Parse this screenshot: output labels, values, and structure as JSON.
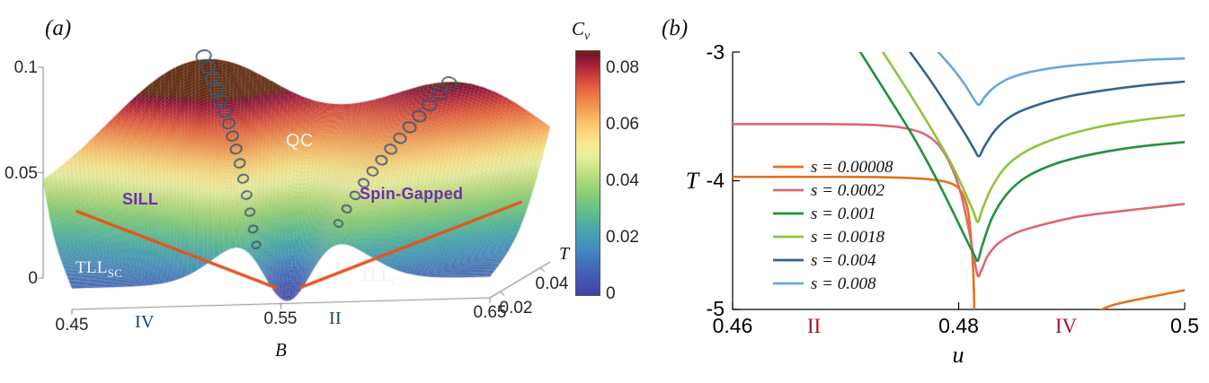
{
  "chart_data": [
    {
      "type": "surface",
      "panel_tag": "(a)",
      "xlabel": "B",
      "ylabel": "T",
      "b_range": [
        0.45,
        0.65
      ],
      "t_range": [
        0.015,
        0.045
      ],
      "z_range": [
        0,
        0.1
      ],
      "b_ticks": [
        {
          "v": 0.45,
          "label": "0.45"
        },
        {
          "v": 0.55,
          "label": "0.55"
        },
        {
          "v": 0.65,
          "label": "0.65"
        }
      ],
      "t_ticks": [
        {
          "v": 0.02,
          "label": "0.02"
        },
        {
          "v": 0.04,
          "label": "0.04"
        }
      ],
      "z_ticks": [
        {
          "v": 0,
          "label": "0"
        },
        {
          "v": 0.05,
          "label": "0.05"
        },
        {
          "v": 0.1,
          "label": "0.1"
        }
      ],
      "colorbar": {
        "label_main": "C",
        "label_sub": "v",
        "vmax": 0.0865,
        "ticks": [
          {
            "v": 0,
            "label": "0"
          },
          {
            "v": 0.02,
            "label": "0.02"
          },
          {
            "v": 0.04,
            "label": "0.04"
          },
          {
            "v": 0.06,
            "label": "0.06"
          },
          {
            "v": 0.08,
            "label": "0.08"
          }
        ]
      },
      "colormap": [
        [
          0.0,
          "#4440a8"
        ],
        [
          0.07,
          "#4458b4"
        ],
        [
          0.14,
          "#4374bc"
        ],
        [
          0.2,
          "#4390bd"
        ],
        [
          0.27,
          "#47a8a8"
        ],
        [
          0.34,
          "#5fbe8d"
        ],
        [
          0.42,
          "#8ccf72"
        ],
        [
          0.5,
          "#bfdf7f"
        ],
        [
          0.57,
          "#e8ef9f"
        ],
        [
          0.62,
          "#f7e98f"
        ],
        [
          0.68,
          "#f9d175"
        ],
        [
          0.74,
          "#f7ae5c"
        ],
        [
          0.8,
          "#f08448"
        ],
        [
          0.86,
          "#e25a3c"
        ],
        [
          0.91,
          "#c43537"
        ],
        [
          0.95,
          "#a01c39"
        ],
        [
          0.98,
          "#801330"
        ],
        [
          1.0,
          "#642d10"
        ]
      ],
      "surface_model": {
        "b_critical": 0.553,
        "ridge_left_slope": 0.9,
        "ridge_right_slope": 1.35,
        "ridge_left_height": 0.07,
        "ridge_right_height": 0.055,
        "width_base": 0.01,
        "width_slope": 0.6,
        "background": 0.03,
        "dip_width_b": 0.012,
        "dip_width_t": 0.01,
        "grid_b": 130,
        "grid_t": 64
      },
      "phase_labels": {
        "qc": {
          "text": "QC",
          "color": "#f7f4ef"
        },
        "sill": {
          "text": "SILL",
          "color": "#6e2fae"
        },
        "spin_gapped": {
          "text": "Spin-Gapped",
          "color": "#6e2fae"
        },
        "tll_sc": {
          "text": "TLL",
          "sub": "SC",
          "color": "#eef1f6"
        },
        "tll_c": {
          "text": "TLL",
          "sub": "C",
          "color": "#eef1f6"
        },
        "region_iv": {
          "text": "IV",
          "color": "#1b3f77"
        },
        "region_ii": {
          "text": "II",
          "color": "#1b3f77"
        }
      },
      "markers": {
        "color": "#3a556e",
        "left_count": 15,
        "right_count": 13
      },
      "boundary_lines": {
        "color": "#e3541b",
        "left": {
          "b": [
            0.459,
            0.547
          ],
          "t": [
            0.55,
            0.1
          ],
          "z": [
            0.038,
            0.006
          ]
        },
        "right": {
          "b": [
            0.559,
            0.649
          ],
          "t": [
            0.1,
            0.55
          ],
          "z": [
            0.006,
            0.036
          ]
        }
      }
    },
    {
      "type": "line",
      "panel_tag": "(b)",
      "xlabel": "u",
      "ylabel": "T",
      "xlim": [
        0.46,
        0.5
      ],
      "ylim": [
        -5,
        -3
      ],
      "x_ticks": [
        {
          "v": 0.46,
          "label": "0.46"
        },
        {
          "v": 0.48,
          "label": "0.48"
        },
        {
          "v": 0.5,
          "label": "0.5"
        }
      ],
      "y_ticks": [
        {
          "v": -3,
          "label": "-3"
        },
        {
          "v": -4,
          "label": "-4"
        },
        {
          "v": -5,
          "label": "-5"
        }
      ],
      "legend_position": "left-middle",
      "region_labels": [
        {
          "text": "II",
          "u": 0.4672,
          "color": "#a2142f"
        },
        {
          "text": "IV",
          "u": 0.4895,
          "color": "#a2142f"
        }
      ],
      "series": [
        {
          "label": "s = 0.00008",
          "color": "#e0731d",
          "segments": [
            [
              [
                0.46,
                -3.97
              ],
              [
                0.47,
                -3.97
              ],
              [
                0.4745,
                -3.975
              ],
              [
                0.4775,
                -3.99
              ],
              [
                0.4793,
                -4.02
              ],
              [
                0.4802,
                -4.08
              ],
              [
                0.4808,
                -4.22
              ],
              [
                0.4811,
                -4.45
              ],
              [
                0.4813,
                -4.72
              ],
              [
                0.4814,
                -5.05
              ]
            ],
            [
              [
                0.4915,
                -5.05
              ],
              [
                0.4935,
                -4.97
              ],
              [
                0.496,
                -4.92
              ],
              [
                0.498,
                -4.885
              ],
              [
                0.5,
                -4.85
              ]
            ]
          ]
        },
        {
          "label": "s = 0.0002",
          "color": "#d96a74",
          "segments": [
            [
              [
                0.46,
                -3.56
              ],
              [
                0.468,
                -3.56
              ],
              [
                0.472,
                -3.565
              ],
              [
                0.4748,
                -3.585
              ],
              [
                0.4768,
                -3.63
              ],
              [
                0.4782,
                -3.72
              ],
              [
                0.4793,
                -3.88
              ],
              [
                0.4802,
                -4.1
              ],
              [
                0.4809,
                -4.38
              ],
              [
                0.4814,
                -4.62
              ],
              [
                0.4817,
                -4.74
              ],
              [
                0.482,
                -4.7
              ],
              [
                0.4826,
                -4.58
              ],
              [
                0.4836,
                -4.48
              ],
              [
                0.4852,
                -4.4
              ],
              [
                0.4875,
                -4.34
              ],
              [
                0.4905,
                -4.28
              ],
              [
                0.494,
                -4.24
              ],
              [
                0.497,
                -4.21
              ],
              [
                0.5,
                -4.18
              ]
            ]
          ]
        },
        {
          "label": "s = 0.001",
          "color": "#21913d",
          "segments": [
            [
              [
                0.4713,
                -3.0
              ],
              [
                0.4736,
                -3.32
              ],
              [
                0.476,
                -3.66
              ],
              [
                0.478,
                -3.98
              ],
              [
                0.4796,
                -4.26
              ],
              [
                0.4807,
                -4.46
              ],
              [
                0.4814,
                -4.58
              ],
              [
                0.4817,
                -4.62
              ],
              [
                0.4821,
                -4.5
              ],
              [
                0.483,
                -4.28
              ],
              [
                0.4843,
                -4.1
              ],
              [
                0.486,
                -3.97
              ],
              [
                0.4885,
                -3.87
              ],
              [
                0.4915,
                -3.8
              ],
              [
                0.4955,
                -3.74
              ],
              [
                0.5,
                -3.7
              ]
            ]
          ]
        },
        {
          "label": "s = 0.0018",
          "color": "#8fc43c",
          "segments": [
            [
              [
                0.4733,
                -3.0
              ],
              [
                0.4755,
                -3.3
              ],
              [
                0.4776,
                -3.6
              ],
              [
                0.4793,
                -3.86
              ],
              [
                0.4805,
                -4.08
              ],
              [
                0.4813,
                -4.24
              ],
              [
                0.4817,
                -4.32
              ],
              [
                0.4821,
                -4.22
              ],
              [
                0.483,
                -4.04
              ],
              [
                0.4843,
                -3.88
              ],
              [
                0.4862,
                -3.76
              ],
              [
                0.489,
                -3.66
              ],
              [
                0.4925,
                -3.58
              ],
              [
                0.496,
                -3.53
              ],
              [
                0.5,
                -3.49
              ]
            ]
          ]
        },
        {
          "label": "s = 0.004",
          "color": "#35648f",
          "segments": [
            [
              [
                0.4757,
                -3.0
              ],
              [
                0.4775,
                -3.22
              ],
              [
                0.4793,
                -3.46
              ],
              [
                0.4806,
                -3.64
              ],
              [
                0.4814,
                -3.76
              ],
              [
                0.4818,
                -3.81
              ],
              [
                0.4823,
                -3.73
              ],
              [
                0.4833,
                -3.6
              ],
              [
                0.4848,
                -3.49
              ],
              [
                0.487,
                -3.41
              ],
              [
                0.49,
                -3.34
              ],
              [
                0.4935,
                -3.29
              ],
              [
                0.4968,
                -3.255
              ],
              [
                0.5,
                -3.23
              ]
            ]
          ]
        },
        {
          "label": "s = 0.008",
          "color": "#64a9dc",
          "segments": [
            [
              [
                0.4782,
                -3.0
              ],
              [
                0.4795,
                -3.13
              ],
              [
                0.4806,
                -3.26
              ],
              [
                0.4813,
                -3.36
              ],
              [
                0.4818,
                -3.41
              ],
              [
                0.4823,
                -3.35
              ],
              [
                0.4832,
                -3.27
              ],
              [
                0.4846,
                -3.2
              ],
              [
                0.4866,
                -3.15
              ],
              [
                0.4895,
                -3.11
              ],
              [
                0.4935,
                -3.08
              ],
              [
                0.4968,
                -3.06
              ],
              [
                0.5,
                -3.05
              ]
            ]
          ]
        }
      ]
    }
  ]
}
